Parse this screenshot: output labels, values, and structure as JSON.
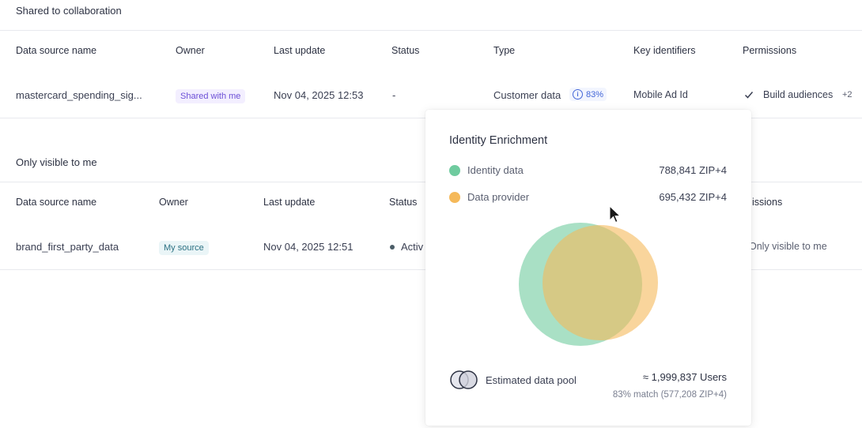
{
  "shared_section": {
    "title": "Shared to collaboration",
    "columns": [
      "Data source name",
      "Owner",
      "Last update",
      "Status",
      "Type",
      "Key identifiers",
      "Permissions"
    ],
    "row": {
      "name": "mastercard_spending_sig...",
      "owner": "Shared with me",
      "last_update": "Nov 04, 2025 12:53",
      "status": "-",
      "type": "Customer data",
      "type_match": "83%",
      "key_identifiers": "Mobile Ad Id",
      "permission": "Build audiences",
      "permission_more": "+2"
    }
  },
  "private_section": {
    "title": "Only visible to me",
    "columns": [
      "Data source name",
      "Owner",
      "Last update",
      "Status",
      "issions"
    ],
    "row": {
      "name": "brand_first_party_data",
      "owner": "My source",
      "last_update": "Nov 04, 2025 12:51",
      "status": "Activ",
      "permission": "Only visible to me"
    }
  },
  "popover": {
    "title": "Identity Enrichment",
    "identity": {
      "label": "Identity data",
      "value": "788,841 ZIP+4",
      "color": "#6fcb9f"
    },
    "provider": {
      "label": "Data provider",
      "value": "695,432 ZIP+4",
      "color": "#f5b95a"
    },
    "pool": {
      "label": "Estimated data pool",
      "users": "≈ 1,999,837 Users",
      "match": "83% match (577,208 ZIP+4)"
    }
  }
}
